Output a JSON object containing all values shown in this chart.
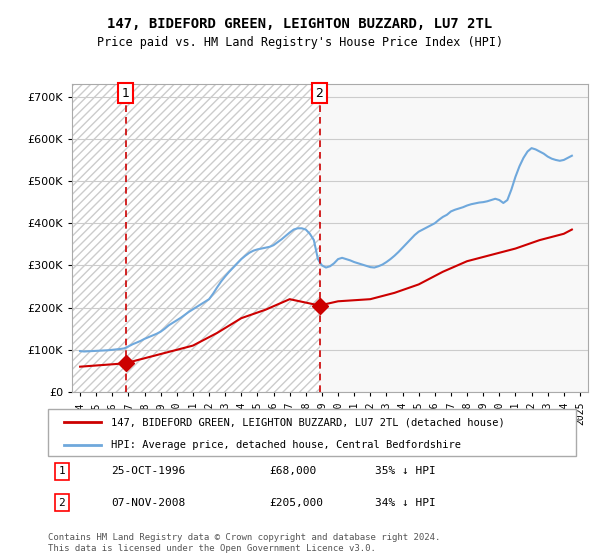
{
  "title": "147, BIDEFORD GREEN, LEIGHTON BUZZARD, LU7 2TL",
  "subtitle": "Price paid vs. HM Land Registry's House Price Index (HPI)",
  "legend_line1": "147, BIDEFORD GREEN, LEIGHTON BUZZARD, LU7 2TL (detached house)",
  "legend_line2": "HPI: Average price, detached house, Central Bedfordshire",
  "footer": "Contains HM Land Registry data © Crown copyright and database right 2024.\nThis data is licensed under the Open Government Licence v3.0.",
  "annotation1_label": "1",
  "annotation1_date": "25-OCT-1996",
  "annotation1_price": "£68,000",
  "annotation1_hpi": "35% ↓ HPI",
  "annotation2_label": "2",
  "annotation2_date": "07-NOV-2008",
  "annotation2_price": "£205,000",
  "annotation2_hpi": "34% ↓ HPI",
  "sale1_x": 1996.82,
  "sale1_y": 68000,
  "sale2_x": 2008.85,
  "sale2_y": 205000,
  "vline1_x": 1996.82,
  "vline2_x": 2008.85,
  "hpi_color": "#6fa8dc",
  "sale_color": "#cc0000",
  "vline_color": "#cc0000",
  "background_hatch_color": "#e0e0e0",
  "ylim": [
    0,
    730000
  ],
  "xlim_left": 1993.5,
  "xlim_right": 2025.5,
  "hpi_data_x": [
    1994,
    1994.25,
    1994.5,
    1994.75,
    1995,
    1995.25,
    1995.5,
    1995.75,
    1996,
    1996.25,
    1996.5,
    1996.75,
    1997,
    1997.25,
    1997.5,
    1997.75,
    1998,
    1998.25,
    1998.5,
    1998.75,
    1999,
    1999.25,
    1999.5,
    1999.75,
    2000,
    2000.25,
    2000.5,
    2000.75,
    2001,
    2001.25,
    2001.5,
    2001.75,
    2002,
    2002.25,
    2002.5,
    2002.75,
    2003,
    2003.25,
    2003.5,
    2003.75,
    2004,
    2004.25,
    2004.5,
    2004.75,
    2005,
    2005.25,
    2005.5,
    2005.75,
    2006,
    2006.25,
    2006.5,
    2006.75,
    2007,
    2007.25,
    2007.5,
    2007.75,
    2008,
    2008.25,
    2008.5,
    2008.75,
    2009,
    2009.25,
    2009.5,
    2009.75,
    2010,
    2010.25,
    2010.5,
    2010.75,
    2011,
    2011.25,
    2011.5,
    2011.75,
    2012,
    2012.25,
    2012.5,
    2012.75,
    2013,
    2013.25,
    2013.5,
    2013.75,
    2014,
    2014.25,
    2014.5,
    2014.75,
    2015,
    2015.25,
    2015.5,
    2015.75,
    2016,
    2016.25,
    2016.5,
    2016.75,
    2017,
    2017.25,
    2017.5,
    2017.75,
    2018,
    2018.25,
    2018.5,
    2018.75,
    2019,
    2019.25,
    2019.5,
    2019.75,
    2020,
    2020.25,
    2020.5,
    2020.75,
    2021,
    2021.25,
    2021.5,
    2021.75,
    2022,
    2022.25,
    2022.5,
    2022.75,
    2023,
    2023.25,
    2023.5,
    2023.75,
    2024,
    2024.25,
    2024.5
  ],
  "hpi_data_y": [
    97000,
    96000,
    96500,
    97000,
    97500,
    98000,
    98500,
    99000,
    100000,
    101000,
    102000,
    103500,
    108000,
    113000,
    117000,
    121000,
    126000,
    130000,
    134000,
    138000,
    143000,
    150000,
    158000,
    164000,
    170000,
    176000,
    183000,
    190000,
    196000,
    202000,
    208000,
    214000,
    220000,
    233000,
    248000,
    262000,
    274000,
    285000,
    295000,
    305000,
    315000,
    323000,
    330000,
    335000,
    338000,
    340000,
    342000,
    344000,
    348000,
    355000,
    362000,
    370000,
    378000,
    385000,
    388000,
    388000,
    385000,
    375000,
    360000,
    315000,
    300000,
    295000,
    298000,
    305000,
    315000,
    318000,
    315000,
    312000,
    308000,
    305000,
    302000,
    299000,
    296000,
    295000,
    298000,
    302000,
    308000,
    315000,
    323000,
    332000,
    342000,
    352000,
    362000,
    372000,
    380000,
    385000,
    390000,
    395000,
    400000,
    408000,
    415000,
    420000,
    428000,
    432000,
    435000,
    438000,
    442000,
    445000,
    447000,
    449000,
    450000,
    452000,
    455000,
    458000,
    455000,
    448000,
    455000,
    480000,
    510000,
    535000,
    555000,
    570000,
    578000,
    575000,
    570000,
    565000,
    558000,
    553000,
    550000,
    548000,
    550000,
    555000,
    560000
  ],
  "sale_data_x": [
    1994.0,
    1996.82,
    1997.5,
    1999.0,
    2001.0,
    2002.5,
    2004.0,
    2005.5,
    2007.0,
    2008.85,
    2010.0,
    2012.0,
    2013.5,
    2015.0,
    2016.5,
    2018.0,
    2019.5,
    2021.0,
    2022.5,
    2024.0,
    2024.5
  ],
  "sale_data_y": [
    60000,
    68000,
    75000,
    90000,
    110000,
    140000,
    175000,
    195000,
    220000,
    205000,
    215000,
    220000,
    235000,
    255000,
    285000,
    310000,
    325000,
    340000,
    360000,
    375000,
    385000
  ]
}
